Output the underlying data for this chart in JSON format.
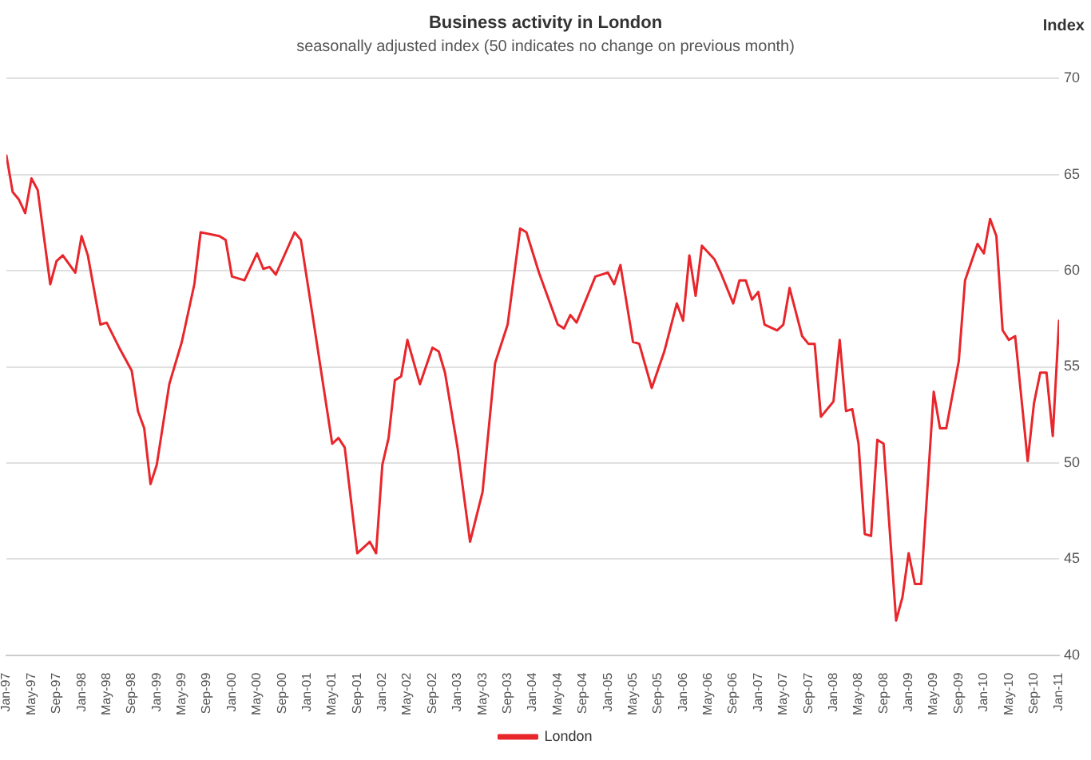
{
  "chart_data": {
    "type": "line",
    "title": "Business activity in London",
    "subtitle": "seasonally adjusted index (50 indicates no change on previous month)",
    "ylabel": "Index",
    "x": [
      "1997-01",
      "1997-02",
      "1997-03",
      "1997-04",
      "1997-05",
      "1997-06",
      "1997-08",
      "1997-09",
      "1997-10",
      "1997-12",
      "1998-01",
      "1998-02",
      "1998-04",
      "1998-05",
      "1998-07",
      "1998-09",
      "1998-10",
      "1998-11",
      "1998-12",
      "1999-01",
      "1999-03",
      "1999-05",
      "1999-07",
      "1999-08",
      "1999-11",
      "1999-12",
      "2000-01",
      "2000-03",
      "2000-05",
      "2000-06",
      "2000-07",
      "2000-08",
      "2000-11",
      "2000-12",
      "2001-02",
      "2001-05",
      "2001-06",
      "2001-07",
      "2001-09",
      "2001-11",
      "2001-12",
      "2002-01",
      "2002-02",
      "2002-03",
      "2002-04",
      "2002-05",
      "2002-07",
      "2002-09",
      "2002-10",
      "2002-11",
      "2003-01",
      "2003-03",
      "2003-05",
      "2003-07",
      "2003-09",
      "2003-11",
      "2003-12",
      "2004-02",
      "2004-05",
      "2004-06",
      "2004-07",
      "2004-08",
      "2004-11",
      "2005-01",
      "2005-02",
      "2005-03",
      "2005-05",
      "2005-06",
      "2005-08",
      "2005-10",
      "2005-12",
      "2006-01",
      "2006-02",
      "2006-03",
      "2006-04",
      "2006-06",
      "2006-07",
      "2006-09",
      "2006-10",
      "2006-11",
      "2006-12",
      "2007-01",
      "2007-02",
      "2007-04",
      "2007-05",
      "2007-06",
      "2007-08",
      "2007-09",
      "2007-10",
      "2007-11",
      "2008-01",
      "2008-02",
      "2008-03",
      "2008-04",
      "2008-05",
      "2008-06",
      "2008-07",
      "2008-08",
      "2008-09",
      "2008-11",
      "2008-12",
      "2009-01",
      "2009-02",
      "2009-03",
      "2009-05",
      "2009-06",
      "2009-07",
      "2009-09",
      "2009-10",
      "2009-12",
      "2010-01",
      "2010-02",
      "2010-03",
      "2010-04",
      "2010-05",
      "2010-06",
      "2010-08",
      "2010-09",
      "2010-10",
      "2010-11",
      "2010-12",
      "2011-01"
    ],
    "series": [
      {
        "name": "London",
        "color": "#e8262b",
        "values": [
          66.0,
          64.1,
          63.7,
          63.0,
          64.8,
          64.2,
          59.3,
          60.5,
          60.8,
          59.9,
          61.8,
          60.8,
          57.2,
          57.3,
          56.0,
          54.8,
          52.7,
          51.8,
          48.9,
          49.9,
          54.1,
          56.3,
          59.3,
          62.0,
          61.8,
          61.6,
          59.7,
          59.5,
          60.9,
          60.1,
          60.2,
          59.8,
          62.0,
          61.6,
          57.4,
          51.0,
          51.3,
          50.8,
          45.3,
          45.9,
          45.3,
          49.9,
          51.3,
          54.3,
          54.5,
          56.4,
          54.1,
          56.0,
          55.8,
          54.7,
          50.8,
          45.9,
          48.5,
          55.2,
          57.2,
          62.2,
          62.0,
          59.9,
          57.2,
          57.0,
          57.7,
          57.3,
          59.7,
          59.9,
          59.3,
          60.3,
          56.3,
          56.2,
          53.9,
          55.8,
          58.3,
          57.4,
          60.8,
          58.7,
          61.3,
          60.6,
          59.9,
          58.3,
          59.5,
          59.5,
          58.5,
          58.9,
          57.2,
          56.9,
          57.2,
          59.1,
          56.6,
          56.2,
          56.2,
          52.4,
          53.2,
          56.4,
          52.7,
          52.8,
          51.0,
          46.3,
          46.2,
          51.2,
          51.0,
          41.8,
          43.0,
          45.3,
          43.7,
          43.7,
          53.7,
          51.8,
          51.8,
          55.3,
          59.5,
          61.4,
          60.9,
          62.7,
          61.8,
          56.9,
          56.4,
          56.6,
          50.1,
          53.1,
          54.7,
          54.7,
          51.4,
          57.4
        ]
      }
    ],
    "xlim": [
      "1997-01",
      "2011-01"
    ],
    "xticks": [
      {
        "value": "1997-01",
        "label": "Jan-97"
      },
      {
        "value": "1997-05",
        "label": "May-97"
      },
      {
        "value": "1997-09",
        "label": "Sep-97"
      },
      {
        "value": "1998-01",
        "label": "Jan-98"
      },
      {
        "value": "1998-05",
        "label": "May-98"
      },
      {
        "value": "1998-09",
        "label": "Sep-98"
      },
      {
        "value": "1999-01",
        "label": "Jan-99"
      },
      {
        "value": "1999-05",
        "label": "May-99"
      },
      {
        "value": "1999-09",
        "label": "Sep-99"
      },
      {
        "value": "2000-01",
        "label": "Jan-00"
      },
      {
        "value": "2000-05",
        "label": "May-00"
      },
      {
        "value": "2000-09",
        "label": "Sep-00"
      },
      {
        "value": "2001-01",
        "label": "Jan-01"
      },
      {
        "value": "2001-05",
        "label": "May-01"
      },
      {
        "value": "2001-09",
        "label": "Sep-01"
      },
      {
        "value": "2002-01",
        "label": "Jan-02"
      },
      {
        "value": "2002-05",
        "label": "May-02"
      },
      {
        "value": "2002-09",
        "label": "Sep-02"
      },
      {
        "value": "2003-01",
        "label": "Jan-03"
      },
      {
        "value": "2003-05",
        "label": "May-03"
      },
      {
        "value": "2003-09",
        "label": "Sep-03"
      },
      {
        "value": "2004-01",
        "label": "Jan-04"
      },
      {
        "value": "2004-05",
        "label": "May-04"
      },
      {
        "value": "2004-09",
        "label": "Sep-04"
      },
      {
        "value": "2005-01",
        "label": "Jan-05"
      },
      {
        "value": "2005-05",
        "label": "May-05"
      },
      {
        "value": "2005-09",
        "label": "Sep-05"
      },
      {
        "value": "2006-01",
        "label": "Jan-06"
      },
      {
        "value": "2006-05",
        "label": "May-06"
      },
      {
        "value": "2006-09",
        "label": "Sep-06"
      },
      {
        "value": "2007-01",
        "label": "Jan-07"
      },
      {
        "value": "2007-05",
        "label": "May-07"
      },
      {
        "value": "2007-09",
        "label": "Sep-07"
      },
      {
        "value": "2008-01",
        "label": "Jan-08"
      },
      {
        "value": "2008-05",
        "label": "May-08"
      },
      {
        "value": "2008-09",
        "label": "Sep-08"
      },
      {
        "value": "2009-01",
        "label": "Jan-09"
      },
      {
        "value": "2009-05",
        "label": "May-09"
      },
      {
        "value": "2009-09",
        "label": "Sep-09"
      },
      {
        "value": "2010-01",
        "label": "Jan-10"
      },
      {
        "value": "2010-05",
        "label": "May-10"
      },
      {
        "value": "2010-09",
        "label": "Sep-10"
      },
      {
        "value": "2011-01",
        "label": "Jan-11"
      }
    ],
    "ylim": [
      40,
      70
    ],
    "yticks": [
      40,
      45,
      50,
      55,
      60,
      65,
      70
    ],
    "grid": "y",
    "legend": "bottom",
    "marker": "none",
    "line_style": "solid"
  }
}
